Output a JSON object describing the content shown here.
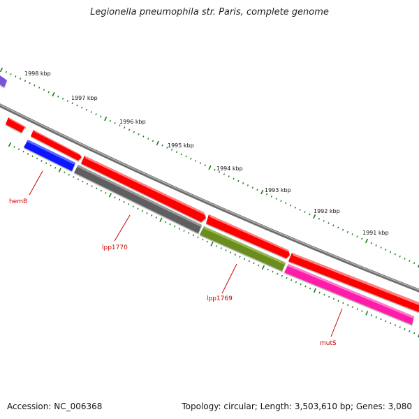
{
  "title": "Legionella pneumophila str. Paris, complete genome",
  "footer": {
    "accession": "Accession: NC_006368",
    "summary": "Topology: circular; Length: 3,503,610 bp; Genes: 3,080"
  },
  "colors": {
    "cds_forward": "#ff0000",
    "hemB": "#0a18ff",
    "lpp1770": "#5e5e5e",
    "lpp1769": "#6b8d1e",
    "mutS": "#ff1aa8",
    "backbone": "#8a8a8a",
    "tick": "#1a7a1a",
    "label": "#cc0000"
  },
  "scale": {
    "labels": [
      {
        "kbp": 1998,
        "text": "1998 kbp"
      },
      {
        "kbp": 1997,
        "text": "1997 kbp"
      },
      {
        "kbp": 1996,
        "text": "1996 kbp"
      },
      {
        "kbp": 1995,
        "text": "1995 kbp"
      },
      {
        "kbp": 1994,
        "text": "1994 kbp"
      },
      {
        "kbp": 1993,
        "text": "1993 kbp"
      },
      {
        "kbp": 1992,
        "text": "1992 kbp"
      },
      {
        "kbp": 1991,
        "text": "1991 kbp"
      }
    ]
  },
  "genes": [
    {
      "name": "hemB",
      "text": "hemB",
      "color_key": "hemB"
    },
    {
      "name": "lpp1770",
      "text": "lpp1770",
      "color_key": "lpp1770"
    },
    {
      "name": "lpp1769",
      "text": "lpp1769",
      "color_key": "lpp1769"
    },
    {
      "name": "mutS",
      "text": "mutS",
      "color_key": "mutS"
    }
  ]
}
